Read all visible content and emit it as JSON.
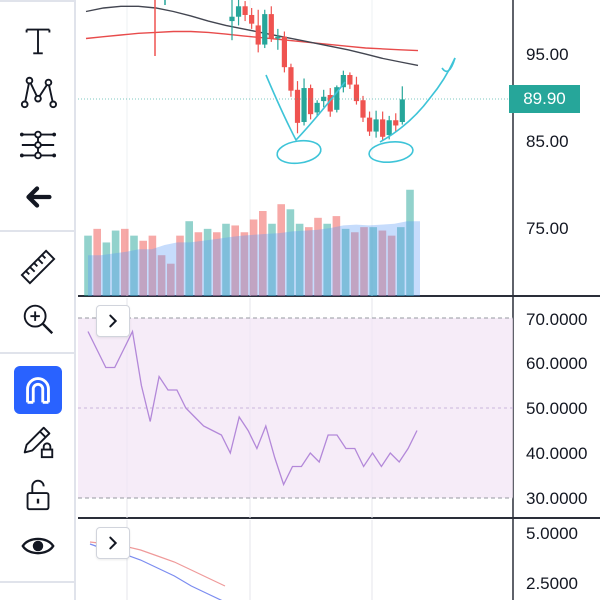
{
  "toolbar": {
    "tools": [
      {
        "name": "text-tool",
        "icon": "text-icon",
        "active": false
      },
      {
        "name": "pattern-tool",
        "icon": "pattern-icon",
        "active": false
      },
      {
        "name": "prediction-tool",
        "icon": "prediction-measure-icon",
        "active": false
      },
      {
        "name": "back-tool",
        "icon": "arrow-left-icon",
        "active": false
      },
      {
        "name": "ruler-tool",
        "icon": "ruler-icon",
        "active": false
      },
      {
        "name": "zoom-tool",
        "icon": "zoom-in-icon",
        "active": false
      },
      {
        "name": "magnet-tool",
        "icon": "magnet-icon",
        "active": true
      },
      {
        "name": "lock-drawings-tool",
        "icon": "pencil-lock-icon",
        "active": false
      },
      {
        "name": "lock-all-tool",
        "icon": "unlock-icon",
        "active": false
      },
      {
        "name": "visibility-tool",
        "icon": "eye-icon",
        "active": false
      }
    ]
  },
  "price_pane": {
    "axis_labels": [
      "95.00",
      "85.00",
      "75.00"
    ],
    "last_price": "89.90",
    "last_price_color": "#26a69a",
    "colors": {
      "up": "#26a69a",
      "down": "#ef5350",
      "ma_fast": "#e84b4b",
      "ma_slow": "#434651",
      "drawing": "#3ec4d8"
    }
  },
  "rsi_pane": {
    "axis_labels": [
      "70.0000",
      "60.0000",
      "50.0000",
      "40.0000",
      "30.0000"
    ],
    "line_color": "#b388d9",
    "band_color": "#f3e5f5"
  },
  "macd_pane": {
    "axis_labels": [
      "5.0000",
      "2.5000"
    ],
    "colors": {
      "macd": "#7b8cf0",
      "signal": "#ef9a9a"
    }
  },
  "chart_data": {
    "type": "candlestick",
    "ohlc": [
      {
        "o": 98.9,
        "h": 101.5,
        "l": 96.7,
        "c": 99.4
      },
      {
        "o": 99.4,
        "h": 102.0,
        "l": 98.4,
        "c": 100.6
      },
      {
        "o": 100.6,
        "h": 101.2,
        "l": 98.9,
        "c": 99.6
      },
      {
        "o": 99.6,
        "h": 100.4,
        "l": 98.0,
        "c": 98.6
      },
      {
        "o": 98.4,
        "h": 100.2,
        "l": 95.3,
        "c": 96.2
      },
      {
        "o": 96.2,
        "h": 100.2,
        "l": 95.8,
        "c": 99.7
      },
      {
        "o": 99.7,
        "h": 100.6,
        "l": 96.5,
        "c": 96.9
      },
      {
        "o": 96.9,
        "h": 98.0,
        "l": 95.6,
        "c": 97.1
      },
      {
        "o": 97.1,
        "h": 97.7,
        "l": 93.0,
        "c": 93.6
      },
      {
        "o": 93.6,
        "h": 94.0,
        "l": 90.2,
        "c": 90.9
      },
      {
        "o": 91.0,
        "h": 92.0,
        "l": 86.0,
        "c": 87.2
      },
      {
        "o": 87.3,
        "h": 92.3,
        "l": 86.9,
        "c": 91.2
      },
      {
        "o": 91.2,
        "h": 91.6,
        "l": 87.6,
        "c": 88.2
      },
      {
        "o": 88.4,
        "h": 89.8,
        "l": 88.0,
        "c": 89.5
      },
      {
        "o": 89.7,
        "h": 91.0,
        "l": 89.0,
        "c": 90.2
      },
      {
        "o": 90.4,
        "h": 91.2,
        "l": 87.9,
        "c": 88.5
      },
      {
        "o": 88.7,
        "h": 91.5,
        "l": 88.4,
        "c": 91.3
      },
      {
        "o": 91.3,
        "h": 93.2,
        "l": 90.7,
        "c": 92.7
      },
      {
        "o": 92.7,
        "h": 93.0,
        "l": 91.1,
        "c": 91.6
      },
      {
        "o": 91.6,
        "h": 92.5,
        "l": 89.3,
        "c": 89.7
      },
      {
        "o": 89.8,
        "h": 90.3,
        "l": 87.3,
        "c": 87.8
      },
      {
        "o": 87.8,
        "h": 88.5,
        "l": 85.7,
        "c": 86.2
      },
      {
        "o": 86.2,
        "h": 88.6,
        "l": 85.5,
        "c": 87.6
      },
      {
        "o": 87.6,
        "h": 88.5,
        "l": 85.2,
        "c": 85.6
      },
      {
        "o": 85.8,
        "h": 88.0,
        "l": 85.3,
        "c": 87.5
      },
      {
        "o": 87.5,
        "h": 88.3,
        "l": 86.2,
        "c": 86.9
      },
      {
        "o": 87.3,
        "h": 91.4,
        "l": 87.0,
        "c": 89.9
      }
    ],
    "ma_fast": [
      96.9,
      97.1,
      97.3,
      97.5,
      97.6,
      97.7,
      97.7,
      97.6,
      97.4,
      97.2,
      97.0,
      96.8,
      96.6,
      96.4,
      96.2,
      96.0,
      95.8,
      95.7,
      95.6,
      95.5
    ],
    "ma_slow": [
      100.0,
      100.4,
      100.6,
      100.6,
      100.4,
      100.0,
      99.5,
      98.9,
      98.4,
      98.0,
      97.6,
      97.2,
      96.8,
      96.4,
      96.0,
      95.6,
      95.1,
      94.6,
      94.2,
      93.8
    ],
    "volume": [
      {
        "v": 0.71,
        "up": true
      },
      {
        "v": 0.79,
        "up": false
      },
      {
        "v": 0.63,
        "up": true
      },
      {
        "v": 0.77,
        "up": true
      },
      {
        "v": 0.79,
        "up": false
      },
      {
        "v": 0.71,
        "up": true
      },
      {
        "v": 0.65,
        "up": false
      },
      {
        "v": 0.71,
        "up": false
      },
      {
        "v": 0.48,
        "up": false
      },
      {
        "v": 0.38,
        "up": false
      },
      {
        "v": 0.71,
        "up": false
      },
      {
        "v": 0.88,
        "up": true
      },
      {
        "v": 0.75,
        "up": false
      },
      {
        "v": 0.79,
        "up": true
      },
      {
        "v": 0.75,
        "up": false
      },
      {
        "v": 0.85,
        "up": true
      },
      {
        "v": 0.83,
        "up": false
      },
      {
        "v": 0.75,
        "up": false
      },
      {
        "v": 0.9,
        "up": false
      },
      {
        "v": 1.0,
        "up": false
      },
      {
        "v": 0.85,
        "up": true
      },
      {
        "v": 1.08,
        "up": false
      },
      {
        "v": 1.02,
        "up": true
      },
      {
        "v": 0.85,
        "up": true
      },
      {
        "v": 0.81,
        "up": false
      },
      {
        "v": 0.92,
        "up": false
      },
      {
        "v": 0.85,
        "up": true
      },
      {
        "v": 0.94,
        "up": false
      },
      {
        "v": 0.79,
        "up": true
      },
      {
        "v": 0.75,
        "up": false
      },
      {
        "v": 0.81,
        "up": false
      },
      {
        "v": 0.81,
        "up": true
      },
      {
        "v": 0.77,
        "up": false
      },
      {
        "v": 0.71,
        "up": false
      },
      {
        "v": 0.81,
        "up": true
      },
      {
        "v": 1.25,
        "up": true
      }
    ],
    "volume_ma": [
      0.48,
      0.48,
      0.5,
      0.52,
      0.55,
      0.55,
      0.6,
      0.63,
      0.63,
      0.65,
      0.67,
      0.69,
      0.71,
      0.72,
      0.73,
      0.74,
      0.76,
      0.77,
      0.78,
      0.8,
      0.83,
      0.84,
      0.83,
      0.84,
      0.85,
      0.88,
      0.88
    ],
    "rsi": [
      67,
      63,
      59,
      59,
      63,
      67,
      55,
      47,
      57,
      54,
      54,
      50,
      48,
      46,
      45,
      44,
      40,
      48,
      45,
      41,
      46,
      39,
      33,
      37,
      37,
      40,
      38,
      44,
      44,
      41,
      41,
      37,
      40,
      37,
      40,
      38,
      41,
      45
    ],
    "macd": [
      4.5,
      4.2,
      4.0,
      3.7,
      3.3,
      2.9,
      2.4,
      2.0,
      1.6
    ],
    "signal": [
      4.6,
      4.5,
      4.4,
      4.2,
      3.9,
      3.6,
      3.2,
      2.8,
      2.4
    ]
  }
}
